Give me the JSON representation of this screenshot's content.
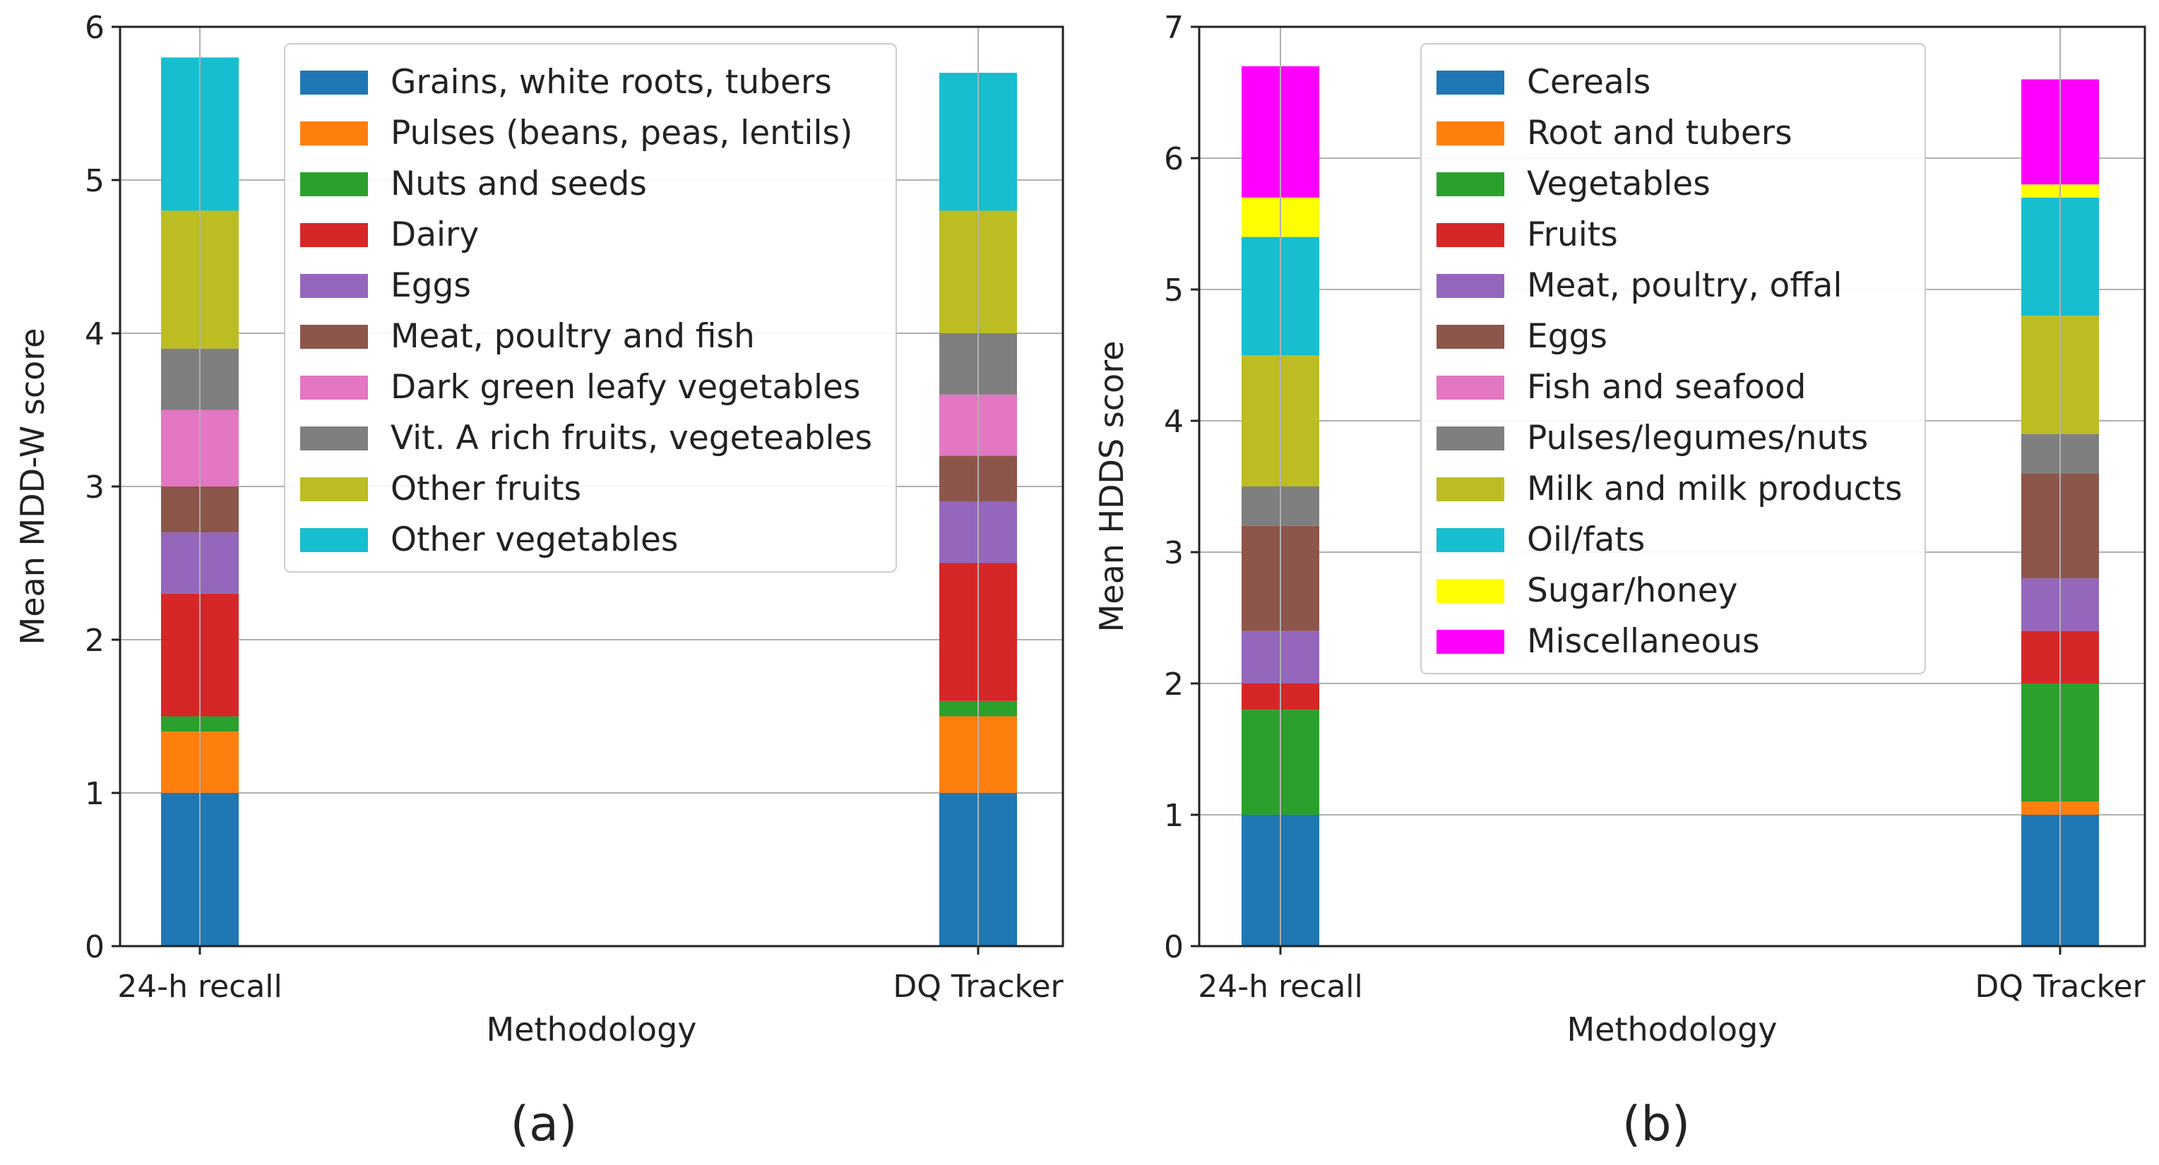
{
  "captions": {
    "a": "(a)",
    "b": "(b)"
  },
  "chart_data": [
    {
      "type": "bar",
      "stacked": true,
      "title": "",
      "xlabel": "Methodology",
      "ylabel": "Mean MDD-W score",
      "categories": [
        "24-h recall",
        "DQ Tracker"
      ],
      "ylim": [
        0,
        6
      ],
      "yticks": [
        0,
        1,
        2,
        3,
        4,
        5,
        6
      ],
      "grid": true,
      "legend_position": "top-center",
      "series": [
        {
          "name": "Grains, white roots, tubers",
          "color": "#1f77b4",
          "values": [
            1.0,
            1.0
          ]
        },
        {
          "name": "Pulses (beans, peas, lentils)",
          "color": "#ff7f0e",
          "values": [
            0.4,
            0.5
          ]
        },
        {
          "name": "Nuts and seeds",
          "color": "#2ca02c",
          "values": [
            0.1,
            0.1
          ]
        },
        {
          "name": "Dairy",
          "color": "#d62728",
          "values": [
            0.8,
            0.9
          ]
        },
        {
          "name": "Eggs",
          "color": "#9467bd",
          "values": [
            0.4,
            0.4
          ]
        },
        {
          "name": "Meat, poultry and fish",
          "color": "#8c564b",
          "values": [
            0.3,
            0.3
          ]
        },
        {
          "name": "Dark green leafy vegetables",
          "color": "#e377c2",
          "values": [
            0.5,
            0.4
          ]
        },
        {
          "name": "Vit. A rich fruits, vegeteables",
          "color": "#7f7f7f",
          "values": [
            0.4,
            0.4
          ]
        },
        {
          "name": "Other fruits",
          "color": "#bcbd22",
          "values": [
            0.9,
            0.8
          ]
        },
        {
          "name": "Other vegetables",
          "color": "#17becf",
          "values": [
            1.0,
            0.9
          ]
        }
      ]
    },
    {
      "type": "bar",
      "stacked": true,
      "title": "",
      "xlabel": "Methodology",
      "ylabel": "Mean HDDS score",
      "categories": [
        "24-h recall",
        "DQ Tracker"
      ],
      "ylim": [
        0,
        7
      ],
      "yticks": [
        0,
        1,
        2,
        3,
        4,
        5,
        6,
        7
      ],
      "grid": true,
      "legend_position": "top-center",
      "series": [
        {
          "name": "Cereals",
          "color": "#1f77b4",
          "values": [
            1.0,
            1.0
          ]
        },
        {
          "name": "Root and tubers",
          "color": "#ff7f0e",
          "values": [
            0.0,
            0.1
          ]
        },
        {
          "name": "Vegetables",
          "color": "#2ca02c",
          "values": [
            0.8,
            0.9
          ]
        },
        {
          "name": "Fruits",
          "color": "#d62728",
          "values": [
            0.2,
            0.4
          ]
        },
        {
          "name": "Meat, poultry, offal",
          "color": "#9467bd",
          "values": [
            0.4,
            0.4
          ]
        },
        {
          "name": "Eggs",
          "color": "#8c564b",
          "values": [
            0.8,
            0.8
          ]
        },
        {
          "name": "Fish and seafood",
          "color": "#e377c2",
          "values": [
            0.0,
            0.0
          ]
        },
        {
          "name": "Pulses/legumes/nuts",
          "color": "#7f7f7f",
          "values": [
            0.3,
            0.3
          ]
        },
        {
          "name": "Milk and milk products",
          "color": "#bcbd22",
          "values": [
            1.0,
            0.9
          ]
        },
        {
          "name": "Oil/fats",
          "color": "#17becf",
          "values": [
            0.9,
            0.9
          ]
        },
        {
          "name": "Sugar/honey",
          "color": "#ffff00",
          "values": [
            0.3,
            0.1
          ]
        },
        {
          "name": "Miscellaneous",
          "color": "#ff00ff",
          "values": [
            1.0,
            0.8
          ]
        }
      ]
    }
  ]
}
